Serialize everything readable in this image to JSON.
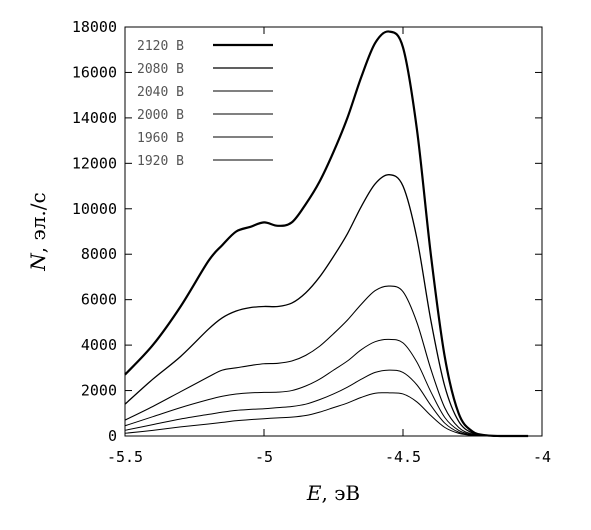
{
  "chart_data": {
    "type": "line",
    "xlabel_symbol": "E",
    "xlabel_unit": ", эВ",
    "ylabel_symbol": "N",
    "ylabel_unit": ", эл./с",
    "xlim": [
      -5.5,
      -4
    ],
    "ylim": [
      0,
      18000
    ],
    "x_ticks": [
      -5.5,
      -5,
      -4.5,
      -4
    ],
    "x_tick_labels": [
      "-5.5",
      "-5",
      "-4.5",
      "-4"
    ],
    "y_ticks": [
      0,
      2000,
      4000,
      6000,
      8000,
      10000,
      12000,
      14000,
      16000,
      18000
    ],
    "y_tick_labels": [
      "0",
      "2000",
      "4000",
      "6000",
      "8000",
      "10000",
      "12000",
      "14000",
      "16000",
      "18000"
    ],
    "grid": false,
    "legend_position": "top-left",
    "x": [
      -5.5,
      -5.4,
      -5.3,
      -5.2,
      -5.15,
      -5.1,
      -5.05,
      -5.0,
      -4.95,
      -4.9,
      -4.85,
      -4.8,
      -4.75,
      -4.7,
      -4.65,
      -4.6,
      -4.55,
      -4.5,
      -4.45,
      -4.4,
      -4.35,
      -4.3,
      -4.25,
      -4.2,
      -4.15,
      -4.1,
      -4.05
    ],
    "series": [
      {
        "name": "2120 В",
        "color": "#000000",
        "width": 2.2,
        "values": [
          2700,
          4000,
          5700,
          7700,
          8400,
          9000,
          9200,
          9400,
          9250,
          9400,
          10200,
          11200,
          12500,
          14000,
          15800,
          17300,
          17800,
          17100,
          13500,
          8000,
          3500,
          1000,
          200,
          30,
          0,
          0,
          0
        ]
      },
      {
        "name": "2080 В",
        "color": "#000000",
        "width": 1.3,
        "values": [
          1400,
          2500,
          3500,
          4700,
          5200,
          5500,
          5650,
          5700,
          5700,
          5850,
          6300,
          7000,
          7900,
          8900,
          10100,
          11100,
          11500,
          11000,
          8700,
          5100,
          2200,
          650,
          130,
          20,
          0,
          0,
          0
        ]
      },
      {
        "name": "2040 В",
        "color": "#000000",
        "width": 1.1,
        "values": [
          700,
          1300,
          1950,
          2600,
          2900,
          3000,
          3100,
          3180,
          3200,
          3300,
          3550,
          3950,
          4500,
          5100,
          5800,
          6400,
          6600,
          6350,
          5000,
          2950,
          1250,
          380,
          80,
          10,
          0,
          0,
          0
        ]
      },
      {
        "name": "2000 В",
        "color": "#000000",
        "width": 1.0,
        "values": [
          450,
          850,
          1250,
          1600,
          1750,
          1850,
          1900,
          1920,
          1930,
          2000,
          2200,
          2500,
          2900,
          3300,
          3800,
          4150,
          4250,
          4100,
          3250,
          1950,
          820,
          250,
          50,
          5,
          0,
          0,
          0
        ]
      },
      {
        "name": "1960 В",
        "color": "#000000",
        "width": 1.0,
        "values": [
          250,
          500,
          750,
          950,
          1050,
          1130,
          1170,
          1200,
          1250,
          1300,
          1400,
          1600,
          1850,
          2150,
          2500,
          2800,
          2900,
          2800,
          2250,
          1350,
          570,
          170,
          35,
          5,
          0,
          0,
          0
        ]
      },
      {
        "name": "1920 В",
        "color": "#000000",
        "width": 1.0,
        "values": [
          120,
          250,
          400,
          530,
          600,
          670,
          720,
          760,
          800,
          830,
          900,
          1050,
          1250,
          1450,
          1700,
          1880,
          1900,
          1850,
          1500,
          900,
          380,
          120,
          25,
          5,
          0,
          0,
          0
        ]
      }
    ]
  }
}
